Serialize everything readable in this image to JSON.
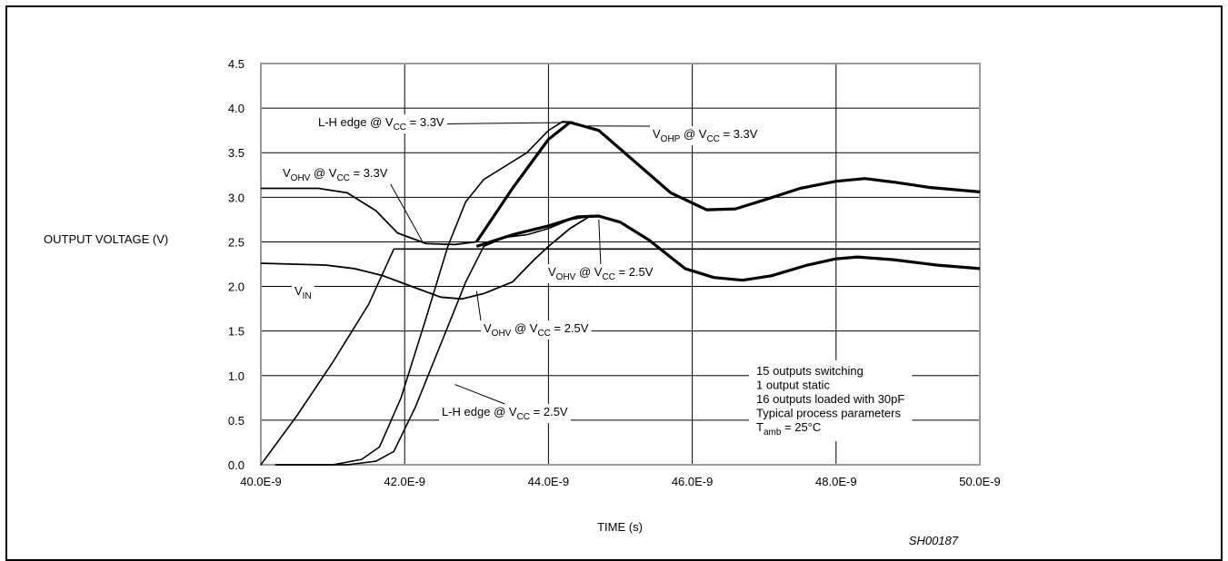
{
  "figure_id": "SH00187",
  "chart_data": {
    "type": "line",
    "title": "",
    "xlabel": "TIME (s)",
    "ylabel": "OUTPUT VOLTAGE (V)",
    "xlim": [
      40.0,
      50.0
    ],
    "ylim": [
      0.0,
      4.5
    ],
    "x_unit_exponent": "E-9",
    "x_ticks": [
      {
        "value": 40,
        "label": "40.0E-9"
      },
      {
        "value": 42,
        "label": "42.0E-9"
      },
      {
        "value": 44,
        "label": "44.0E-9"
      },
      {
        "value": 46,
        "label": "46.0E-9"
      },
      {
        "value": 48,
        "label": "48.0E-9"
      },
      {
        "value": 50,
        "label": "50.0E-9"
      }
    ],
    "y_ticks": [
      {
        "value": 0.0,
        "label": "0.0"
      },
      {
        "value": 0.5,
        "label": "0.5"
      },
      {
        "value": 1.0,
        "label": "1.0"
      },
      {
        "value": 1.5,
        "label": "1.5"
      },
      {
        "value": 2.0,
        "label": "2.0"
      },
      {
        "value": 2.5,
        "label": "2.5"
      },
      {
        "value": 3.0,
        "label": "3.0"
      },
      {
        "value": 3.5,
        "label": "3.5"
      },
      {
        "value": 4.0,
        "label": "4.0"
      },
      {
        "value": 4.5,
        "label": "4.5"
      }
    ],
    "grid": true,
    "series": [
      {
        "name": "VIN",
        "key": "vin",
        "stroke": 1.6,
        "points": [
          [
            40.0,
            0.0
          ],
          [
            40.5,
            0.55
          ],
          [
            41.0,
            1.15
          ],
          [
            41.5,
            1.8
          ],
          [
            41.85,
            2.42
          ],
          [
            44.0,
            2.42
          ],
          [
            46.0,
            2.42
          ],
          [
            48.0,
            2.42
          ],
          [
            50.0,
            2.42
          ]
        ]
      },
      {
        "name": "L-H edge @ VCC = 3.3V",
        "key": "lh33",
        "stroke": 1.6,
        "points": [
          [
            40.2,
            0.0
          ],
          [
            41.0,
            0.0
          ],
          [
            41.4,
            0.06
          ],
          [
            41.65,
            0.2
          ],
          [
            41.95,
            0.75
          ],
          [
            42.3,
            1.65
          ],
          [
            42.6,
            2.45
          ],
          [
            42.85,
            2.95
          ],
          [
            43.1,
            3.2
          ],
          [
            43.4,
            3.35
          ],
          [
            43.7,
            3.5
          ],
          [
            44.0,
            3.75
          ],
          [
            44.2,
            3.85
          ],
          [
            44.35,
            3.84
          ]
        ]
      },
      {
        "name": "L-H edge @ VCC = 2.5V",
        "key": "lh25",
        "stroke": 1.6,
        "points": [
          [
            40.2,
            0.0
          ],
          [
            41.2,
            0.0
          ],
          [
            41.6,
            0.04
          ],
          [
            41.85,
            0.15
          ],
          [
            42.15,
            0.65
          ],
          [
            42.5,
            1.35
          ],
          [
            42.85,
            2.05
          ],
          [
            43.1,
            2.45
          ],
          [
            43.4,
            2.55
          ],
          [
            43.7,
            2.58
          ],
          [
            44.0,
            2.65
          ],
          [
            44.3,
            2.75
          ],
          [
            44.6,
            2.79
          ]
        ]
      },
      {
        "name": "VOHP @ VCC = 3.3V",
        "key": "vohp33",
        "stroke": 3.2,
        "points": [
          [
            43.0,
            2.5
          ],
          [
            43.5,
            3.1
          ],
          [
            44.0,
            3.65
          ],
          [
            44.3,
            3.84
          ],
          [
            44.7,
            3.75
          ],
          [
            45.2,
            3.4
          ],
          [
            45.7,
            3.05
          ],
          [
            46.2,
            2.86
          ],
          [
            46.6,
            2.87
          ],
          [
            47.0,
            2.97
          ],
          [
            47.5,
            3.1
          ],
          [
            48.0,
            3.18
          ],
          [
            48.4,
            3.21
          ],
          [
            48.8,
            3.17
          ],
          [
            49.3,
            3.11
          ],
          [
            50.0,
            3.06
          ]
        ]
      },
      {
        "name": "VOHV @ VCC = 3.3V",
        "key": "vohv33",
        "stroke": 1.8,
        "points": [
          [
            40.0,
            3.1
          ],
          [
            40.8,
            3.1
          ],
          [
            41.2,
            3.05
          ],
          [
            41.6,
            2.85
          ],
          [
            41.9,
            2.6
          ],
          [
            42.3,
            2.48
          ],
          [
            42.7,
            2.47
          ],
          [
            43.0,
            2.5
          ]
        ]
      },
      {
        "name": "VOHV @ VCC = 2.5V",
        "key": "vohv25a",
        "stroke": 3.2,
        "points": [
          [
            43.0,
            2.45
          ],
          [
            43.5,
            2.58
          ],
          [
            44.0,
            2.68
          ],
          [
            44.4,
            2.78
          ],
          [
            44.7,
            2.79
          ],
          [
            45.0,
            2.72
          ],
          [
            45.4,
            2.52
          ],
          [
            45.9,
            2.2
          ],
          [
            46.3,
            2.1
          ],
          [
            46.7,
            2.07
          ],
          [
            47.1,
            2.12
          ],
          [
            47.6,
            2.24
          ],
          [
            48.0,
            2.31
          ],
          [
            48.3,
            2.33
          ],
          [
            48.8,
            2.3
          ],
          [
            49.4,
            2.24
          ],
          [
            50.0,
            2.2
          ]
        ]
      },
      {
        "name": "VOHV @ VCC = 2.5V",
        "key": "vohv25b",
        "stroke": 1.8,
        "points": [
          [
            40.0,
            2.26
          ],
          [
            40.9,
            2.24
          ],
          [
            41.3,
            2.2
          ],
          [
            41.7,
            2.12
          ],
          [
            42.1,
            2.0
          ],
          [
            42.5,
            1.88
          ],
          [
            42.8,
            1.86
          ],
          [
            43.1,
            1.92
          ],
          [
            43.5,
            2.05
          ],
          [
            43.8,
            2.3
          ],
          [
            44.0,
            2.45
          ],
          [
            44.3,
            2.65
          ],
          [
            44.6,
            2.8
          ]
        ]
      }
    ],
    "annotations": [
      {
        "target": "lh33",
        "parts": [
          {
            "t": "L-H edge @ V"
          },
          {
            "t": "CC",
            "sub": true
          },
          {
            "t": " = 3.3V"
          }
        ]
      },
      {
        "target": "vohp33",
        "parts": [
          {
            "t": "V"
          },
          {
            "t": "OHP",
            "sub": true
          },
          {
            "t": " @ V"
          },
          {
            "t": "CC",
            "sub": true
          },
          {
            "t": " = 3.3V"
          }
        ]
      },
      {
        "target": "vohv33",
        "parts": [
          {
            "t": "V"
          },
          {
            "t": "OHV",
            "sub": true
          },
          {
            "t": " @ V"
          },
          {
            "t": "CC",
            "sub": true
          },
          {
            "t": " = 3.3V"
          }
        ]
      },
      {
        "target": "vohv25a",
        "parts": [
          {
            "t": "V"
          },
          {
            "t": "OHV",
            "sub": true
          },
          {
            "t": " @ V"
          },
          {
            "t": "CC",
            "sub": true
          },
          {
            "t": " = 2.5V"
          }
        ]
      },
      {
        "target": "vin",
        "parts": [
          {
            "t": "V"
          },
          {
            "t": "IN",
            "sub": true
          }
        ]
      },
      {
        "target": "vohv25b",
        "parts": [
          {
            "t": "V"
          },
          {
            "t": "OHV",
            "sub": true
          },
          {
            "t": " @ V"
          },
          {
            "t": "CC",
            "sub": true
          },
          {
            "t": " = 2.5V"
          }
        ]
      },
      {
        "target": "lh25",
        "parts": [
          {
            "t": "L-H edge @ V"
          },
          {
            "t": "CC",
            "sub": true
          },
          {
            "t": " = 2.5V"
          }
        ]
      }
    ],
    "conditions": [
      {
        "parts": [
          {
            "t": "15 outputs switching"
          }
        ]
      },
      {
        "parts": [
          {
            "t": "1 output static"
          }
        ]
      },
      {
        "parts": [
          {
            "t": "16 outputs loaded with 30pF"
          }
        ]
      },
      {
        "parts": [
          {
            "t": "Typical process parameters"
          }
        ]
      },
      {
        "parts": [
          {
            "t": "T"
          },
          {
            "t": "amb",
            "sub": true
          },
          {
            "t": " = 25°C"
          }
        ]
      }
    ]
  }
}
